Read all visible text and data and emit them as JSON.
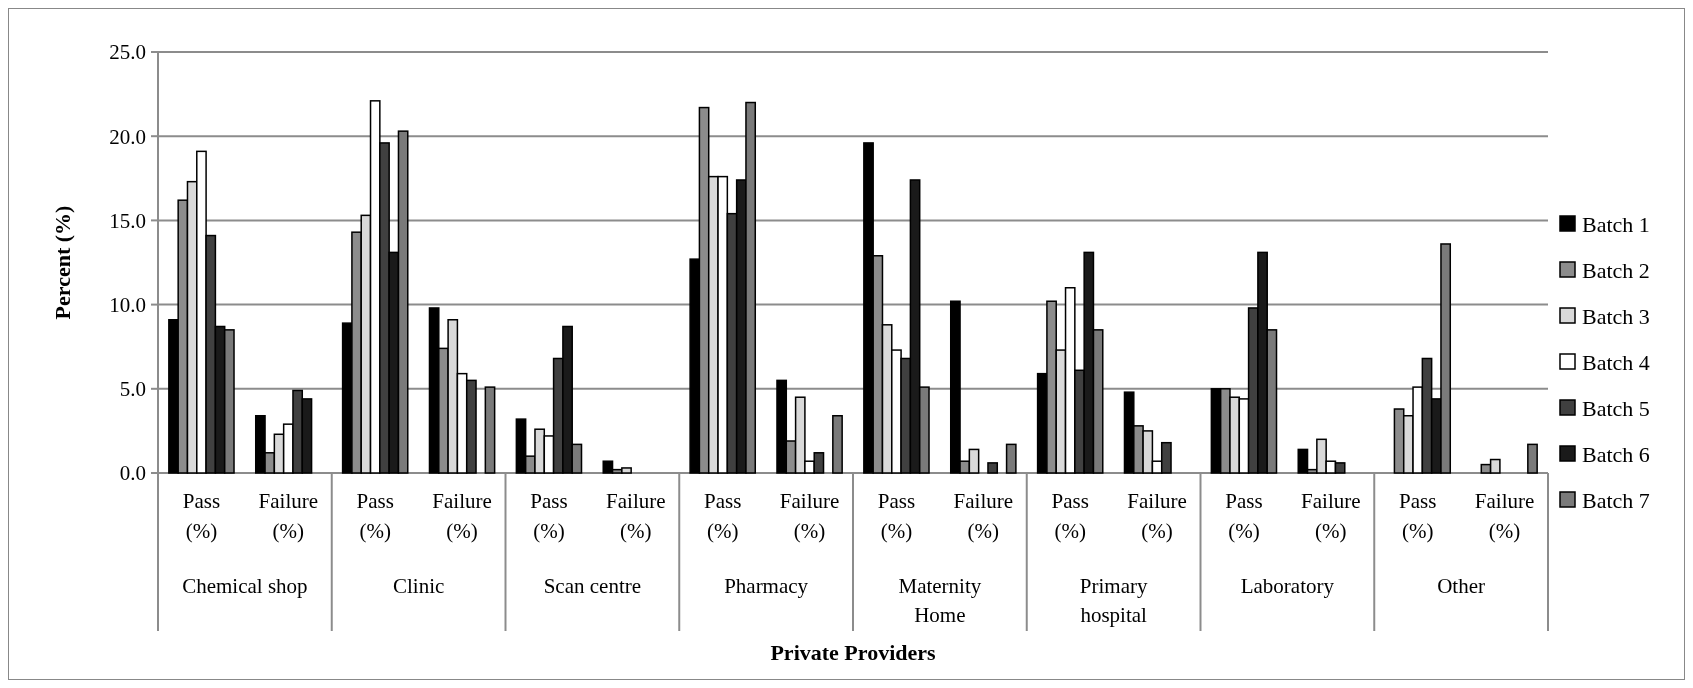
{
  "chart_data": {
    "type": "bar",
    "xlabel": "Private Providers",
    "ylabel": "Percent (%)",
    "categories": [
      "Pass (%)",
      "Failure (%)",
      "Pass (%)",
      "Failure (%)",
      "Pass (%)",
      "Failure (%)",
      "Pass (%)",
      "Failure (%)",
      "Pass (%)",
      "Failure (%)",
      "Pass (%)",
      "Failure (%)",
      "Pass (%)",
      "Failure (%)",
      "Pass (%)",
      "Failure (%)"
    ],
    "annotations": [
      "Chemical shop",
      "Clinic",
      "Scan centre",
      "Pharmacy",
      "Maternity Home",
      "Primary hospital",
      "Laboratory",
      "Other"
    ],
    "series": [
      {
        "name": "Batch 1",
        "color": "#000000",
        "values": [
          9.1,
          3.4,
          8.9,
          9.8,
          3.2,
          0.7,
          12.7,
          5.5,
          19.6,
          10.2,
          5.9,
          4.8,
          5.0,
          1.4,
          0,
          0
        ]
      },
      {
        "name": "Batch 2",
        "color": "#8c8c8c",
        "values": [
          16.2,
          1.2,
          14.3,
          7.4,
          1.0,
          0.2,
          21.7,
          1.9,
          12.9,
          0.7,
          10.2,
          2.8,
          5.0,
          0.2,
          3.8,
          0.5
        ]
      },
      {
        "name": "Batch 3",
        "color": "#d9d9d9",
        "values": [
          17.3,
          2.3,
          15.3,
          9.1,
          2.6,
          0.3,
          17.6,
          4.5,
          8.8,
          1.4,
          7.3,
          2.5,
          4.5,
          2.0,
          3.4,
          0.8
        ]
      },
      {
        "name": "Batch 4",
        "color": "#ffffff",
        "values": [
          19.1,
          2.9,
          22.1,
          5.9,
          2.2,
          0,
          17.6,
          0.7,
          7.3,
          0,
          11.0,
          0.7,
          4.4,
          0.7,
          5.1,
          0
        ]
      },
      {
        "name": "Batch 5",
        "color": "#404040",
        "values": [
          14.1,
          4.9,
          19.6,
          5.5,
          6.8,
          0,
          15.4,
          1.2,
          6.8,
          0.6,
          6.1,
          1.8,
          9.8,
          0.6,
          6.8,
          0
        ]
      },
      {
        "name": "Batch 6",
        "color": "#1a1a1a",
        "values": [
          8.7,
          4.4,
          13.1,
          0,
          8.7,
          0,
          17.4,
          0,
          17.4,
          0,
          13.1,
          0,
          13.1,
          0,
          4.4,
          0
        ]
      },
      {
        "name": "Batch 7",
        "color": "#7a7a7a",
        "values": [
          8.5,
          0,
          20.3,
          5.1,
          1.7,
          0,
          22.0,
          3.4,
          5.1,
          1.7,
          8.5,
          0,
          8.5,
          0,
          13.6,
          1.7
        ]
      }
    ],
    "ylim": [
      0,
      25
    ],
    "yticks": [
      {
        "value": 0,
        "label": "0.0"
      },
      {
        "value": 5,
        "label": "5.0"
      },
      {
        "value": 10,
        "label": "10.0"
      },
      {
        "value": 15,
        "label": "15.0"
      },
      {
        "value": 20,
        "label": "20.0"
      },
      {
        "value": 25,
        "label": "25.0"
      }
    ],
    "grid": "y",
    "legend": "right"
  }
}
